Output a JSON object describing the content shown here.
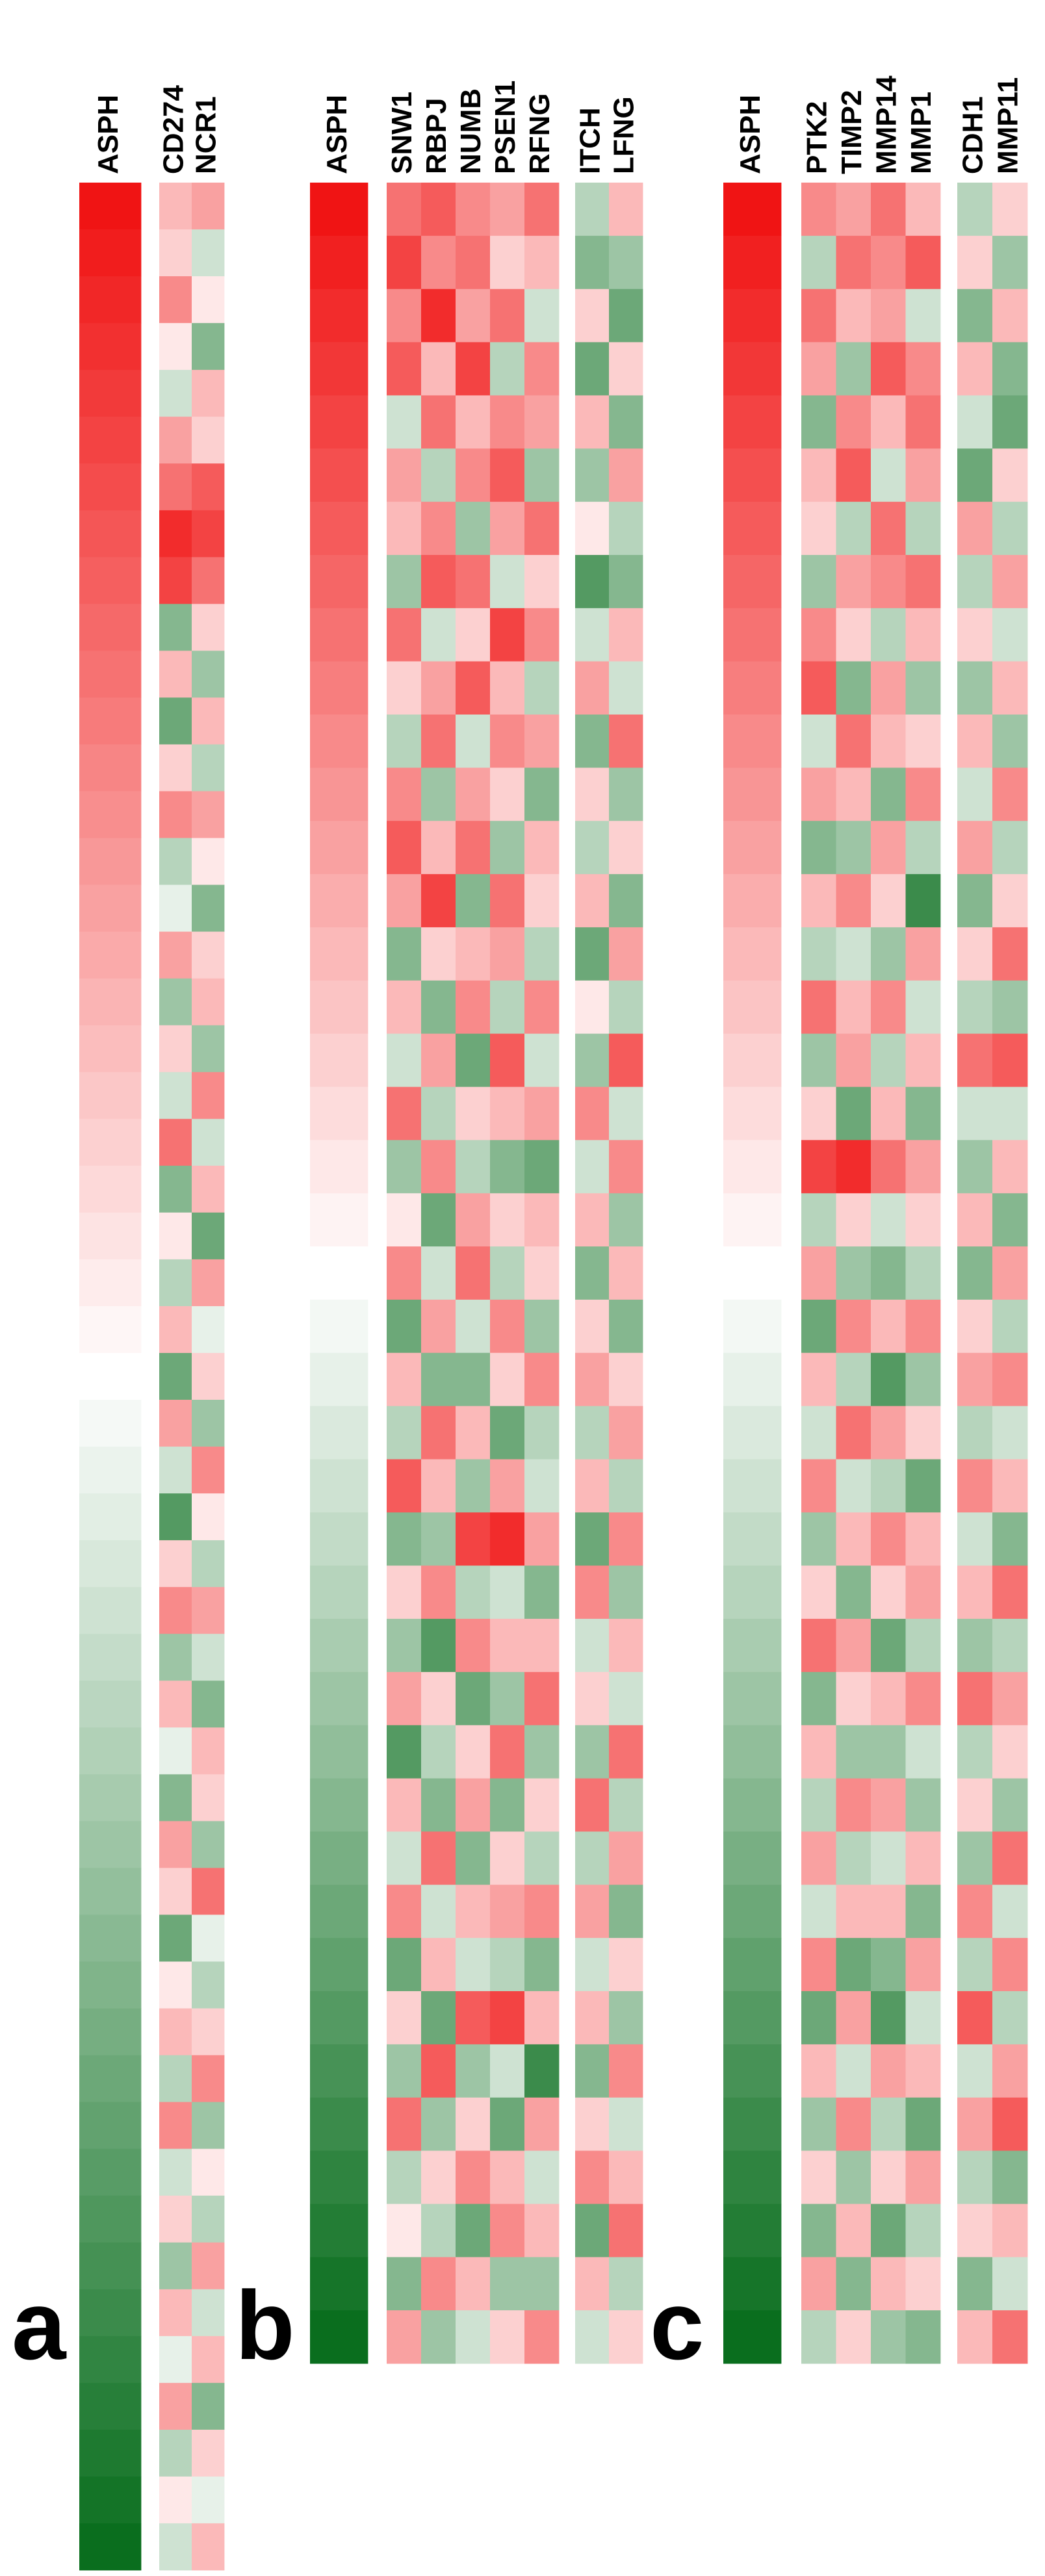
{
  "chart_data": [
    {
      "type": "heatmap",
      "panel": "a",
      "clim": [
        -1,
        1
      ],
      "colors": {
        "low": "#0a6e1e",
        "mid": "#ffffff",
        "high": "#f01414"
      },
      "groups": [
        [
          {
            "name": "ASPH",
            "values": [
              1,
              0.96,
              0.92,
              0.88,
              0.84,
              0.8,
              0.76,
              0.72,
              0.68,
              0.64,
              0.6,
              0.56,
              0.52,
              0.48,
              0.44,
              0.4,
              0.36,
              0.32,
              0.28,
              0.24,
              0.2,
              0.16,
              0.12,
              0.08,
              0.04,
              0,
              -0.04,
              -0.08,
              -0.12,
              -0.16,
              -0.2,
              -0.24,
              -0.28,
              -0.32,
              -0.36,
              -0.4,
              -0.44,
              -0.48,
              -0.52,
              -0.56,
              -0.6,
              -0.64,
              -0.68,
              -0.72,
              -0.76,
              -0.8,
              -0.84,
              -0.88,
              -0.92,
              -0.96,
              -1
            ]
          }
        ],
        [
          {
            "name": "CD274",
            "values": [
              0.3,
              0.2,
              0.5,
              0.1,
              -0.2,
              0.4,
              0.6,
              0.9,
              0.8,
              -0.5,
              0.3,
              -0.6,
              0.2,
              0.5,
              -0.3,
              -0.1,
              0.4,
              -0.4,
              0.2,
              -0.2,
              0.6,
              -0.5,
              0.1,
              -0.3,
              0.3,
              -0.6,
              0.4,
              -0.2,
              -0.7,
              0.2,
              0.5,
              -0.4,
              0.3,
              -0.1,
              -0.5,
              0.4,
              0.2,
              -0.6,
              0.1,
              0.3,
              -0.3,
              0.5,
              -0.2,
              0.2,
              -0.4,
              0.3,
              -0.1,
              0.4,
              -0.3,
              0.1,
              -0.2
            ]
          },
          {
            "name": "NCR1",
            "values": [
              0.4,
              -0.2,
              0.1,
              -0.5,
              0.3,
              0.2,
              0.7,
              0.8,
              0.6,
              0.2,
              -0.4,
              0.3,
              -0.3,
              0.4,
              0.1,
              -0.5,
              0.2,
              0.3,
              -0.4,
              0.5,
              -0.2,
              0.3,
              -0.6,
              0.4,
              -0.1,
              0.2,
              -0.4,
              0.5,
              0.1,
              -0.3,
              0.4,
              -0.2,
              -0.5,
              0.3,
              0.2,
              -0.4,
              0.6,
              -0.1,
              -0.3,
              0.2,
              0.5,
              -0.4,
              0.1,
              -0.3,
              0.4,
              -0.2,
              0.3,
              -0.5,
              0.2,
              -0.1,
              0.3
            ]
          }
        ]
      ]
    },
    {
      "type": "heatmap",
      "panel": "b",
      "clim": [
        -1,
        1
      ],
      "colors": {
        "low": "#0a6e1e",
        "mid": "#ffffff",
        "high": "#f01414"
      },
      "groups": [
        [
          {
            "name": "ASPH",
            "values": [
              1,
              0.95,
              0.9,
              0.85,
              0.8,
              0.75,
              0.7,
              0.65,
              0.6,
              0.55,
              0.5,
              0.45,
              0.4,
              0.35,
              0.3,
              0.25,
              0.2,
              0.15,
              0.1,
              0.05,
              0,
              -0.05,
              -0.1,
              -0.15,
              -0.2,
              -0.25,
              -0.3,
              -0.35,
              -0.4,
              -0.45,
              -0.5,
              -0.55,
              -0.6,
              -0.65,
              -0.7,
              -0.75,
              -0.8,
              -0.85,
              -0.9,
              -0.95,
              -1
            ]
          }
        ],
        [
          {
            "name": "SNW1",
            "values": [
              0.6,
              0.8,
              0.5,
              0.7,
              -0.2,
              0.4,
              0.3,
              -0.4,
              0.6,
              0.2,
              -0.3,
              0.5,
              0.7,
              0.4,
              -0.5,
              0.3,
              -0.2,
              0.6,
              -0.4,
              0.1,
              0.5,
              -0.6,
              0.3,
              -0.3,
              0.7,
              -0.5,
              0.2,
              -0.4,
              0.4,
              -0.7,
              0.3,
              -0.2,
              0.5,
              -0.6,
              0.2,
              -0.4,
              0.6,
              -0.3,
              0.1,
              -0.5,
              0.4
            ]
          },
          {
            "name": "RBPJ",
            "values": [
              0.7,
              0.5,
              0.9,
              0.3,
              0.6,
              -0.3,
              0.5,
              0.7,
              -0.2,
              0.4,
              0.6,
              -0.4,
              0.3,
              0.8,
              0.2,
              -0.5,
              0.4,
              -0.3,
              0.5,
              -0.6,
              -0.2,
              0.4,
              -0.5,
              0.6,
              0.3,
              -0.4,
              0.5,
              -0.7,
              0.2,
              -0.3,
              -0.5,
              0.6,
              -0.2,
              0.3,
              -0.6,
              0.7,
              -0.4,
              0.2,
              -0.3,
              0.5,
              -0.4
            ]
          },
          {
            "name": "NUMB",
            "values": [
              0.5,
              0.6,
              0.4,
              0.8,
              0.3,
              0.5,
              -0.4,
              0.6,
              0.2,
              0.7,
              -0.2,
              0.4,
              0.6,
              -0.5,
              0.3,
              0.5,
              -0.6,
              0.2,
              -0.3,
              0.4,
              0.6,
              -0.2,
              -0.5,
              0.3,
              -0.4,
              0.8,
              -0.3,
              0.5,
              -0.6,
              0.2,
              0.4,
              -0.5,
              0.3,
              -0.2,
              0.7,
              -0.4,
              0.2,
              0.5,
              -0.6,
              0.3,
              -0.2
            ]
          },
          {
            "name": "PSEN1",
            "values": [
              0.4,
              0.2,
              0.6,
              -0.3,
              0.5,
              0.7,
              0.4,
              -0.2,
              0.8,
              0.3,
              0.5,
              0.2,
              -0.4,
              0.6,
              0.4,
              -0.3,
              0.7,
              0.3,
              -0.5,
              0.2,
              -0.3,
              0.5,
              0.2,
              -0.6,
              0.4,
              0.9,
              -0.2,
              0.3,
              -0.4,
              0.6,
              -0.5,
              0.2,
              0.4,
              -0.3,
              0.8,
              -0.2,
              -0.6,
              0.3,
              0.5,
              -0.4,
              0.2
            ]
          },
          {
            "name": "RFNG",
            "values": [
              0.6,
              0.3,
              -0.2,
              0.5,
              0.4,
              -0.4,
              0.6,
              0.2,
              0.5,
              -0.3,
              0.4,
              -0.5,
              0.3,
              0.2,
              -0.3,
              0.5,
              -0.2,
              0.4,
              -0.6,
              0.3,
              0.2,
              -0.4,
              0.5,
              -0.3,
              -0.2,
              0.4,
              -0.5,
              0.3,
              0.6,
              -0.4,
              0.2,
              -0.3,
              0.5,
              -0.5,
              0.3,
              -0.8,
              0.4,
              -0.2,
              0.3,
              -0.4,
              0.5
            ]
          }
        ],
        [
          {
            "name": "ITCH",
            "values": [
              -0.3,
              -0.5,
              0.2,
              -0.6,
              0.3,
              -0.4,
              0.1,
              -0.7,
              -0.2,
              0.4,
              -0.5,
              0.2,
              -0.3,
              0.3,
              -0.6,
              0.1,
              -0.4,
              0.5,
              -0.2,
              0.3,
              -0.5,
              0.2,
              0.4,
              -0.3,
              0.3,
              -0.6,
              0.5,
              -0.2,
              0.2,
              -0.4,
              0.6,
              -0.3,
              0.4,
              -0.2,
              0.3,
              -0.5,
              0.2,
              0.5,
              -0.6,
              0.3,
              -0.2
            ]
          },
          {
            "name": "LFNG",
            "values": [
              0.3,
              -0.4,
              -0.6,
              0.2,
              -0.5,
              0.4,
              -0.3,
              -0.5,
              0.3,
              -0.2,
              0.6,
              -0.4,
              0.2,
              -0.5,
              0.4,
              -0.3,
              0.7,
              -0.2,
              0.5,
              -0.4,
              0.3,
              -0.5,
              0.2,
              0.4,
              -0.3,
              0.5,
              -0.4,
              0.3,
              -0.2,
              0.6,
              -0.3,
              0.4,
              -0.5,
              0.2,
              -0.4,
              0.5,
              -0.2,
              0.3,
              0.6,
              -0.3,
              0.2
            ]
          }
        ]
      ]
    },
    {
      "type": "heatmap",
      "panel": "c",
      "clim": [
        -1,
        1
      ],
      "colors": {
        "low": "#0a6e1e",
        "mid": "#ffffff",
        "high": "#f01414"
      },
      "groups": [
        [
          {
            "name": "ASPH",
            "values": [
              1,
              0.95,
              0.9,
              0.85,
              0.8,
              0.75,
              0.7,
              0.65,
              0.6,
              0.55,
              0.5,
              0.45,
              0.4,
              0.35,
              0.3,
              0.25,
              0.2,
              0.15,
              0.1,
              0.05,
              0,
              -0.05,
              -0.1,
              -0.15,
              -0.2,
              -0.25,
              -0.3,
              -0.35,
              -0.4,
              -0.45,
              -0.5,
              -0.55,
              -0.6,
              -0.65,
              -0.7,
              -0.75,
              -0.8,
              -0.85,
              -0.9,
              -0.95,
              -1
            ]
          }
        ],
        [
          {
            "name": "PTK2",
            "values": [
              0.5,
              -0.3,
              0.6,
              0.4,
              -0.5,
              0.3,
              0.2,
              -0.4,
              0.5,
              0.7,
              -0.2,
              0.4,
              -0.5,
              0.3,
              -0.3,
              0.6,
              -0.4,
              0.2,
              0.8,
              -0.3,
              0.4,
              -0.6,
              0.3,
              -0.2,
              0.5,
              -0.4,
              0.2,
              0.6,
              -0.5,
              0.3,
              -0.3,
              0.4,
              -0.2,
              0.5,
              -0.6,
              0.3,
              -0.4,
              0.2,
              -0.5,
              0.4,
              -0.3
            ]
          },
          {
            "name": "TIMP2",
            "values": [
              0.4,
              0.6,
              0.3,
              -0.4,
              0.5,
              0.7,
              -0.3,
              0.4,
              0.2,
              -0.5,
              0.6,
              0.3,
              -0.4,
              0.5,
              -0.2,
              0.3,
              0.4,
              -0.6,
              0.9,
              0.2,
              -0.4,
              0.5,
              -0.3,
              0.6,
              -0.2,
              0.3,
              -0.5,
              0.4,
              0.2,
              -0.4,
              0.5,
              -0.3,
              0.3,
              -0.6,
              0.4,
              -0.2,
              0.5,
              -0.4,
              0.3,
              -0.5,
              0.2
            ]
          },
          {
            "name": "MMP14",
            "values": [
              0.6,
              0.5,
              0.4,
              0.7,
              0.3,
              -0.2,
              0.6,
              0.5,
              -0.3,
              0.4,
              0.3,
              -0.5,
              0.4,
              0.2,
              -0.4,
              0.5,
              -0.3,
              0.3,
              0.6,
              -0.2,
              -0.5,
              0.3,
              -0.7,
              0.4,
              -0.3,
              0.5,
              0.2,
              -0.6,
              0.3,
              -0.4,
              0.4,
              -0.2,
              0.3,
              -0.5,
              -0.7,
              0.4,
              -0.3,
              0.2,
              -0.6,
              0.3,
              -0.4
            ]
          },
          {
            "name": "MMP1",
            "values": [
              0.3,
              0.7,
              -0.2,
              0.5,
              0.6,
              0.4,
              -0.3,
              0.6,
              0.3,
              -0.4,
              0.2,
              0.5,
              -0.3,
              -0.8,
              0.4,
              -0.2,
              0.3,
              -0.5,
              0.4,
              0.2,
              -0.3,
              0.5,
              -0.4,
              0.2,
              -0.6,
              0.3,
              0.4,
              -0.3,
              0.5,
              -0.2,
              -0.4,
              0.3,
              -0.5,
              0.4,
              -0.2,
              0.3,
              -0.6,
              0.4,
              -0.3,
              0.2,
              -0.5
            ]
          }
        ],
        [
          {
            "name": "CDH1",
            "values": [
              -0.3,
              0.2,
              -0.5,
              0.3,
              -0.2,
              -0.6,
              0.4,
              -0.3,
              0.2,
              -0.4,
              0.3,
              -0.2,
              0.4,
              -0.5,
              0.2,
              -0.3,
              0.6,
              -0.2,
              -0.4,
              0.3,
              -0.5,
              0.2,
              0.4,
              -0.3,
              0.5,
              -0.2,
              0.3,
              -0.4,
              0.6,
              -0.3,
              0.2,
              -0.4,
              0.5,
              -0.3,
              0.7,
              -0.2,
              0.4,
              -0.3,
              0.2,
              -0.5,
              0.3
            ]
          },
          {
            "name": "MMP11",
            "values": [
              0.2,
              -0.4,
              0.3,
              -0.5,
              -0.6,
              0.2,
              -0.3,
              0.4,
              -0.2,
              0.3,
              -0.4,
              0.5,
              -0.3,
              0.2,
              0.6,
              -0.4,
              0.7,
              -0.2,
              0.3,
              -0.5,
              0.4,
              -0.3,
              0.5,
              -0.2,
              0.3,
              -0.5,
              0.6,
              -0.3,
              0.4,
              0.2,
              -0.4,
              0.6,
              -0.2,
              0.5,
              -0.3,
              0.4,
              0.7,
              -0.5,
              0.3,
              -0.2,
              0.6
            ]
          }
        ]
      ]
    }
  ]
}
